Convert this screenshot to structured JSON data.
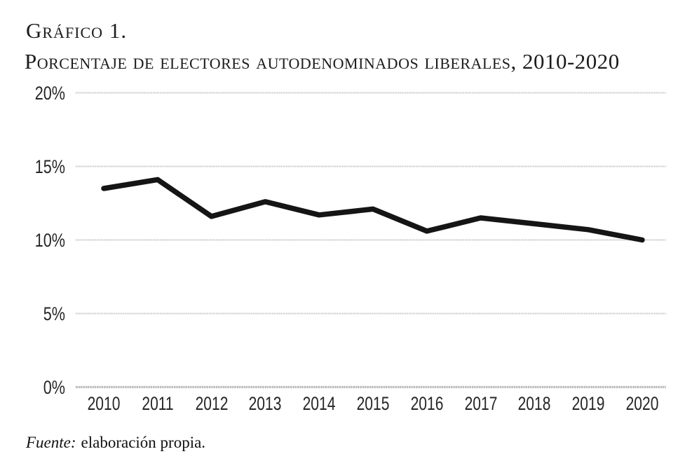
{
  "figure": {
    "title": "Gráfico 1.",
    "subtitle": "Porcentaje de electores autodenominados liberales, 2010-2020",
    "source_label": "Fuente:",
    "source_text": "elaboración propia."
  },
  "chart_data": {
    "type": "line",
    "title": "Gráfico 1.",
    "subtitle": "Porcentaje de electores autodenominados liberales, 2010-2020",
    "categories": [
      "2010",
      "2011",
      "2012",
      "2013",
      "2014",
      "2015",
      "2016",
      "2017",
      "2018",
      "2019",
      "2020"
    ],
    "series": [
      {
        "name": "Porcentaje de electores autodenominados liberales",
        "values": [
          13.5,
          14.1,
          11.6,
          12.6,
          11.7,
          12.1,
          10.6,
          11.5,
          11.1,
          10.7,
          10.0
        ]
      }
    ],
    "xlabel": "",
    "ylabel": "",
    "ylim": [
      0,
      20
    ],
    "yticks": [
      {
        "value": 0,
        "label": "0%"
      },
      {
        "value": 5,
        "label": "5%"
      },
      {
        "value": 10,
        "label": "10%"
      },
      {
        "value": 15,
        "label": "15%"
      },
      {
        "value": 20,
        "label": "20%"
      }
    ],
    "grid": "horizontal",
    "legend": "none",
    "line_color": "#151515",
    "gridline_color": "#c6c6c6",
    "zero_line_color": "#a9a9a9",
    "label_color": "#262626",
    "source": "Fuente: elaboración propia."
  }
}
